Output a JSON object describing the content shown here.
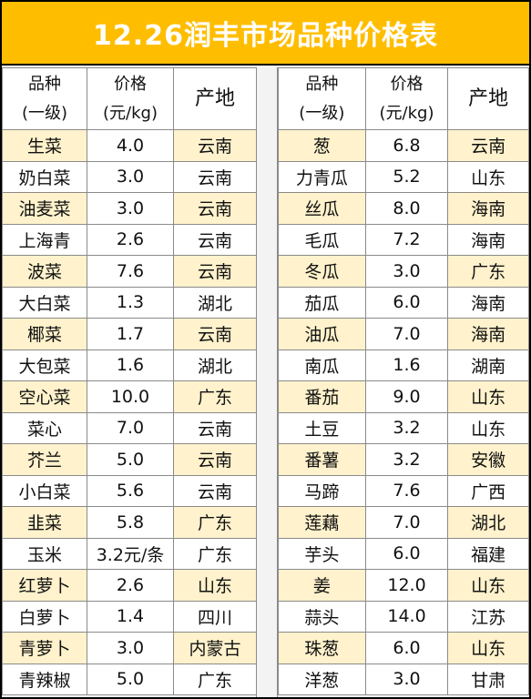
{
  "title": "12.26润丰市场品种价格表",
  "headers": {
    "name_line1": "品种",
    "name_line2": "(一级)",
    "price_line1": "价格",
    "price_line2": "(元/kg)",
    "origin": "产地"
  },
  "colors": {
    "title_bg": "#ffbd00",
    "title_text": "#ffffff",
    "row_highlight": "#fff2cc"
  },
  "left": [
    {
      "name": "生菜",
      "price": "4.0",
      "origin": "云南"
    },
    {
      "name": "奶白菜",
      "price": "3.0",
      "origin": "云南"
    },
    {
      "name": "油麦菜",
      "price": "3.0",
      "origin": "云南"
    },
    {
      "name": "上海青",
      "price": "2.6",
      "origin": "云南"
    },
    {
      "name": "波菜",
      "price": "7.6",
      "origin": "云南"
    },
    {
      "name": "大白菜",
      "price": "1.3",
      "origin": "湖北"
    },
    {
      "name": "椰菜",
      "price": "1.7",
      "origin": "云南"
    },
    {
      "name": "大包菜",
      "price": "1.6",
      "origin": "湖北"
    },
    {
      "name": "空心菜",
      "price": "10.0",
      "origin": "广东"
    },
    {
      "name": "菜心",
      "price": "7.0",
      "origin": "云南"
    },
    {
      "name": "芥兰",
      "price": "5.0",
      "origin": "云南"
    },
    {
      "name": "小白菜",
      "price": "5.6",
      "origin": "云南"
    },
    {
      "name": "韭菜",
      "price": "5.8",
      "origin": "广东"
    },
    {
      "name": "玉米",
      "price": "3.2元/条",
      "origin": "广东"
    },
    {
      "name": "红萝卜",
      "price": "2.6",
      "origin": "山东"
    },
    {
      "name": "白萝卜",
      "price": "1.4",
      "origin": "四川"
    },
    {
      "name": "青萝卜",
      "price": "3.0",
      "origin": "内蒙古"
    },
    {
      "name": "青辣椒",
      "price": "5.0",
      "origin": "广东"
    }
  ],
  "right": [
    {
      "name": "葱",
      "price": "6.8",
      "origin": "云南"
    },
    {
      "name": "力青瓜",
      "price": "5.2",
      "origin": "山东"
    },
    {
      "name": "丝瓜",
      "price": "8.0",
      "origin": "海南"
    },
    {
      "name": "毛瓜",
      "price": "7.2",
      "origin": "海南"
    },
    {
      "name": "冬瓜",
      "price": "3.0",
      "origin": "广东"
    },
    {
      "name": "茄瓜",
      "price": "6.0",
      "origin": "海南"
    },
    {
      "name": "油瓜",
      "price": "7.0",
      "origin": "海南"
    },
    {
      "name": "南瓜",
      "price": "1.6",
      "origin": "湖南"
    },
    {
      "name": "番茄",
      "price": "9.0",
      "origin": "山东"
    },
    {
      "name": "土豆",
      "price": "3.2",
      "origin": "山东"
    },
    {
      "name": "番薯",
      "price": "3.2",
      "origin": "安徽"
    },
    {
      "name": "马蹄",
      "price": "7.6",
      "origin": "广西"
    },
    {
      "name": "莲藕",
      "price": "7.0",
      "origin": "湖北"
    },
    {
      "name": "芋头",
      "price": "6.0",
      "origin": "福建"
    },
    {
      "name": "姜",
      "price": "12.0",
      "origin": "山东"
    },
    {
      "name": "蒜头",
      "price": "14.0",
      "origin": "江苏"
    },
    {
      "name": "珠葱",
      "price": "6.0",
      "origin": "山东"
    },
    {
      "name": "洋葱",
      "price": "3.0",
      "origin": "甘肃"
    }
  ]
}
